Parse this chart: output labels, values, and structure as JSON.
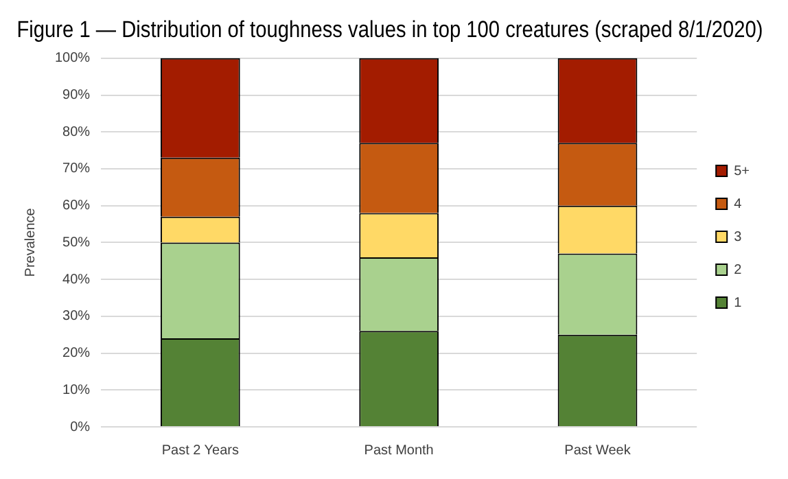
{
  "chart_data": {
    "type": "bar",
    "stacked": true,
    "title": "Figure 1 — Distribution of toughness values in top 100 creatures (scraped 8/1/2020)",
    "ylabel": "Prevalence",
    "categories": [
      "Past 2 Years",
      "Past Month",
      "Past Week"
    ],
    "series": [
      {
        "name": "1",
        "color": "#548235",
        "values": [
          24,
          26,
          25
        ]
      },
      {
        "name": "2",
        "color": "#a9d18e",
        "values": [
          26,
          20,
          22
        ]
      },
      {
        "name": "3",
        "color": "#ffd966",
        "values": [
          7,
          12,
          13
        ]
      },
      {
        "name": "4",
        "color": "#c55a11",
        "values": [
          16,
          19,
          17
        ]
      },
      {
        "name": "5+",
        "color": "#a31c00",
        "values": [
          27,
          23,
          23
        ]
      }
    ],
    "ylim": [
      0,
      100
    ],
    "yticks": [
      {
        "value": 0,
        "label": "0%"
      },
      {
        "value": 10,
        "label": "10%"
      },
      {
        "value": 20,
        "label": "20%"
      },
      {
        "value": 30,
        "label": "30%"
      },
      {
        "value": 40,
        "label": "40%"
      },
      {
        "value": 50,
        "label": "50%"
      },
      {
        "value": 60,
        "label": "60%"
      },
      {
        "value": 70,
        "label": "70%"
      },
      {
        "value": 80,
        "label": "80%"
      },
      {
        "value": 90,
        "label": "90%"
      },
      {
        "value": 100,
        "label": "100%"
      }
    ],
    "grid": "y",
    "legend": "right"
  }
}
